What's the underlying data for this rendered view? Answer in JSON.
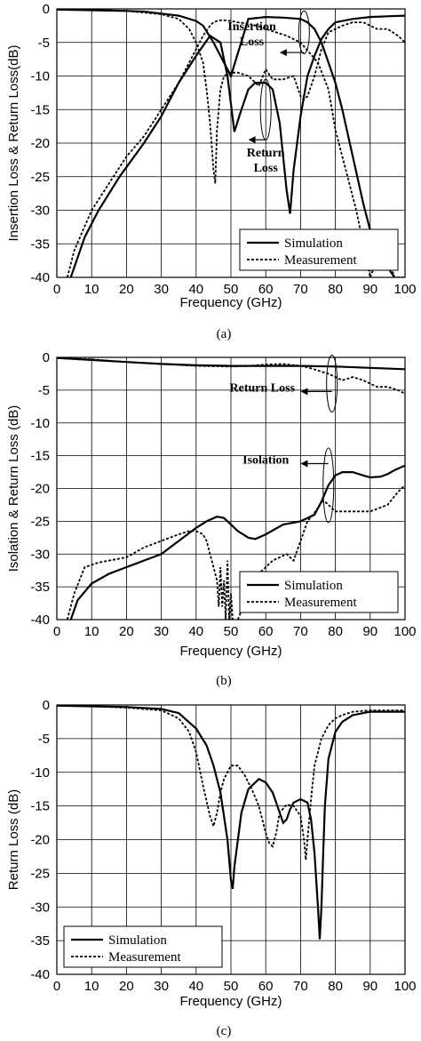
{
  "chart_data": [
    {
      "type": "line",
      "ylabel": "Insertion Loss & Return Loss(dB)",
      "xlabel": "Frequency (GHz)",
      "caption": "(a)",
      "xlim": [
        0,
        100
      ],
      "ylim": [
        -40,
        0
      ],
      "xticks": [
        "0",
        "10",
        "20",
        "30",
        "40",
        "50",
        "60",
        "70",
        "80",
        "90",
        "100"
      ],
      "yticks": [
        "0",
        "-5",
        "-10",
        "-15",
        "-20",
        "-25",
        "-30",
        "-35",
        "-40"
      ],
      "legend": {
        "position": "bottom-right",
        "entries": [
          "Simulation",
          "Measurement"
        ]
      },
      "grid": true,
      "annotations": [
        {
          "lines": [
            "Insertion",
            "Loss"
          ],
          "x": 56,
          "y": -3.2
        },
        {
          "lines": [
            "Return",
            "Loss"
          ],
          "x": 60,
          "y": -22
        }
      ],
      "series": [
        {
          "name": "Simulation",
          "style": "solid",
          "curves": [
            {
              "x": [
                0,
                10,
                20,
                25,
                30,
                35,
                40,
                42,
                45,
                50,
                55,
                60,
                65,
                70,
                72,
                74,
                76,
                78,
                80,
                82,
                85,
                88,
                90,
                92,
                95,
                97
              ],
              "y": [
                -0.1,
                -0.2,
                -0.3,
                -0.4,
                -0.7,
                -1.0,
                -1.8,
                -2.5,
                -5.0,
                -10.0,
                -1.5,
                -1.2,
                -1.3,
                -1.5,
                -2.0,
                -3.0,
                -5.0,
                -8.0,
                -11.0,
                -15.0,
                -22.0,
                -29.0,
                -33.0,
                -36.0,
                -38.5,
                -40.0
              ]
            },
            {
              "x": [
                4,
                8,
                12,
                18,
                25,
                30,
                35,
                40,
                44,
                47,
                49,
                51,
                53,
                55,
                57,
                60,
                62,
                64,
                65,
                66,
                67,
                68,
                70,
                72,
                74,
                76,
                78,
                80,
                85,
                90,
                95,
                100
              ],
              "y": [
                -40,
                -34,
                -30,
                -25,
                -20,
                -16,
                -11,
                -7,
                -4,
                -5,
                -10,
                -18.3,
                -15,
                -12,
                -11,
                -11,
                -12,
                -17,
                -22,
                -27,
                -30.5,
                -24,
                -16,
                -10,
                -7,
                -4.5,
                -3,
                -2,
                -1.5,
                -1.2,
                -1.1,
                -1.0
              ]
            }
          ]
        },
        {
          "name": "Measurement",
          "style": "dashed",
          "curves": [
            {
              "x": [
                3,
                5,
                10,
                15,
                20,
                25,
                30,
                35,
                38,
                40,
                42,
                44,
                45,
                46,
                47,
                48,
                50,
                52,
                55,
                58,
                60,
                63,
                66,
                70,
                75,
                78,
                80,
                82,
                84,
                85,
                86,
                88,
                90,
                93,
                95,
                97,
                100
              ],
              "y": [
                -40,
                -36,
                -30,
                -26,
                -22,
                -19,
                -15,
                -11,
                -8,
                -6,
                -4,
                -2.5,
                -2,
                -1.8,
                -1.7,
                -1.7,
                -1.8,
                -2.0,
                -2.2,
                -2.6,
                -3.0,
                -3.5,
                -4.0,
                -5.0,
                -8.0,
                -12.0,
                -18.0,
                -22.0,
                -26.0,
                -28.0,
                -30.0,
                -35.0,
                -40.0,
                -36.0,
                -37.0,
                -40.0,
                -40.0
              ]
            },
            {
              "x": [
                10,
                20,
                30,
                35,
                38,
                40,
                42,
                43,
                44,
                45,
                45.5,
                46,
                47,
                48,
                50,
                52,
                55,
                58,
                60,
                62,
                65,
                68,
                70,
                71,
                72,
                74,
                76,
                78,
                80,
                82,
                85,
                88,
                90,
                92,
                95,
                98,
                100
              ],
              "y": [
                -0.1,
                -0.3,
                -0.8,
                -1.5,
                -3.0,
                -5.0,
                -8.0,
                -12.0,
                -17.0,
                -24.0,
                -26.0,
                -18.0,
                -12.0,
                -10.0,
                -9.5,
                -9.5,
                -10.0,
                -11.5,
                -9.0,
                -10.5,
                -10.5,
                -10.0,
                -13.0,
                -13.5,
                -13.0,
                -10.0,
                -6.0,
                -3.5,
                -3.0,
                -2.5,
                -2.0,
                -2.0,
                -2.5,
                -3.0,
                -3.0,
                -4.0,
                -5.0
              ]
            }
          ]
        }
      ]
    },
    {
      "type": "line",
      "ylabel": "Isolation & Return Loss (dB)",
      "xlabel": "Frequency (GHz)",
      "caption": "(b)",
      "xlim": [
        0,
        100
      ],
      "ylim": [
        -40,
        0
      ],
      "xticks": [
        "0",
        "10",
        "20",
        "30",
        "40",
        "50",
        "60",
        "70",
        "80",
        "90",
        "100"
      ],
      "yticks": [
        "0",
        "-5",
        "-10",
        "-15",
        "-20",
        "-25",
        "-30",
        "-35",
        "-40"
      ],
      "legend": {
        "position": "bottom-right",
        "entries": [
          "Simulation",
          "Measurement"
        ]
      },
      "grid": true,
      "annotations": [
        {
          "lines": [
            "Return Loss"
          ],
          "x": 59,
          "y": -5.2
        },
        {
          "lines": [
            "Isolation"
          ],
          "x": 60,
          "y": -16.2
        }
      ],
      "series": [
        {
          "name": "Simulation",
          "style": "solid",
          "curves": [
            {
              "x": [
                0,
                10,
                20,
                30,
                40,
                50,
                60,
                70,
                80,
                90,
                100
              ],
              "y": [
                -0.1,
                -0.4,
                -0.7,
                -1.0,
                -1.2,
                -1.3,
                -1.3,
                -1.3,
                -1.4,
                -1.6,
                -1.8
              ]
            },
            {
              "x": [
                4,
                6,
                10,
                15,
                20,
                25,
                30,
                35,
                40,
                43,
                46,
                48,
                50,
                52,
                55,
                57,
                60,
                65,
                70,
                74,
                76,
                78,
                80,
                82,
                85,
                88,
                90,
                93,
                95,
                97,
                100
              ],
              "y": [
                -40,
                -37,
                -34.5,
                -33,
                -32,
                -31,
                -30,
                -28,
                -26,
                -25,
                -24.3,
                -24.5,
                -25.5,
                -26.5,
                -27.5,
                -27.7,
                -27,
                -25.5,
                -25,
                -24,
                -22,
                -19.5,
                -18,
                -17.5,
                -17.5,
                -18,
                -18.3,
                -18.2,
                -17.8,
                -17.2,
                -16.5
              ]
            }
          ]
        },
        {
          "name": "Measurement",
          "style": "dashed",
          "curves": [
            {
              "x": [
                0,
                10,
                20,
                30,
                40,
                50,
                55,
                60,
                65,
                70,
                72,
                75,
                78,
                80,
                82,
                85,
                88,
                90,
                92,
                95,
                98,
                100
              ],
              "y": [
                -0.1,
                -0.3,
                -0.7,
                -1.0,
                -1.3,
                -1.4,
                -1.3,
                -1.1,
                -1.0,
                -1.3,
                -1.5,
                -2.0,
                -2.5,
                -3.0,
                -3.5,
                -3.0,
                -3.5,
                -4.0,
                -4.5,
                -4.5,
                -5.0,
                -5.5
              ]
            },
            {
              "x": [
                3,
                5,
                8,
                12,
                15,
                20,
                25,
                30,
                35,
                38,
                40,
                42,
                43,
                44,
                45,
                46,
                46.5,
                47,
                47.5,
                48,
                48.5,
                49,
                49.5,
                50,
                50.5,
                51
              ],
              "y": [
                -40,
                -36,
                -32,
                -31.3,
                -31,
                -30.5,
                -29,
                -28,
                -27,
                -26.5,
                -26.5,
                -27,
                -28,
                -30,
                -32,
                -34,
                -38,
                -32,
                -38,
                -34,
                -40,
                -31,
                -40,
                -36,
                -40,
                -40
              ]
            },
            {
              "x": [
                52,
                55,
                58,
                62,
                64,
                66,
                68,
                70,
                72,
                75,
                76,
                77,
                78,
                80,
                82,
                85,
                90,
                95,
                98,
                100
              ],
              "y": [
                -40,
                -36,
                -33,
                -31,
                -30.5,
                -30,
                -31,
                -28,
                -25,
                -23,
                -22,
                -22,
                -22.5,
                -23.5,
                -23.5,
                -23.5,
                -23.5,
                -22.5,
                -20.5,
                -19.5
              ]
            }
          ]
        }
      ]
    },
    {
      "type": "line",
      "ylabel": "Return Loss (dB)",
      "xlabel": "Frequency (GHz)",
      "caption": "(c)",
      "xlim": [
        0,
        100
      ],
      "ylim": [
        -40,
        0
      ],
      "xticks": [
        "0",
        "10",
        "20",
        "30",
        "40",
        "50",
        "60",
        "70",
        "80",
        "90",
        "100"
      ],
      "yticks": [
        "0",
        "-5",
        "-10",
        "-15",
        "-20",
        "-25",
        "-30",
        "-35",
        "-40"
      ],
      "legend": {
        "position": "bottom-left",
        "entries": [
          "Simulation",
          "Measurement"
        ]
      },
      "grid": true,
      "annotations": [],
      "series": [
        {
          "name": "Simulation",
          "style": "solid",
          "curves": [
            {
              "x": [
                0,
                10,
                20,
                30,
                35,
                40,
                43,
                45,
                47,
                49,
                50,
                50.5,
                51,
                53,
                55,
                58,
                60,
                62,
                64,
                65,
                66,
                67,
                68,
                70,
                72,
                73,
                74,
                75,
                75.5,
                76,
                76.5,
                77,
                78,
                80,
                82,
                85,
                90,
                95,
                100
              ],
              "y": [
                -0.1,
                -0.2,
                -0.3,
                -0.6,
                -1.2,
                -3.5,
                -6.0,
                -9.0,
                -13.0,
                -20.0,
                -26.0,
                -27.3,
                -24.0,
                -16.0,
                -12.5,
                -11.0,
                -11.5,
                -13.0,
                -16.0,
                -17.5,
                -17.0,
                -15.5,
                -14.5,
                -14.0,
                -14.5,
                -17.0,
                -22.0,
                -30.0,
                -34.8,
                -30.0,
                -22.0,
                -15.0,
                -8.0,
                -4.0,
                -2.5,
                -1.5,
                -1.0,
                -1.0,
                -1.0
              ]
            }
          ]
        },
        {
          "name": "Measurement",
          "style": "dashed",
          "curves": [
            {
              "x": [
                0,
                10,
                20,
                30,
                35,
                38,
                40,
                42,
                44,
                45,
                46,
                47,
                48,
                50,
                52,
                54,
                56,
                58,
                60,
                61,
                62,
                63,
                64,
                66,
                68,
                70,
                71,
                71.5,
                72,
                73,
                74,
                76,
                78,
                80,
                82,
                85,
                90,
                95,
                100
              ],
              "y": [
                -0.1,
                -0.2,
                -0.4,
                -0.8,
                -2.0,
                -4.0,
                -7.0,
                -12.0,
                -16.5,
                -18.0,
                -16.0,
                -13.0,
                -11.0,
                -9.0,
                -9.0,
                -10.5,
                -12.5,
                -15.0,
                -19.0,
                -20.5,
                -21.0,
                -19.0,
                -16.0,
                -14.8,
                -15.0,
                -16.5,
                -20.0,
                -23.0,
                -20.0,
                -14.0,
                -9.0,
                -5.0,
                -3.0,
                -2.0,
                -1.5,
                -1.0,
                -0.8,
                -0.8,
                -0.8
              ]
            }
          ]
        }
      ]
    }
  ]
}
